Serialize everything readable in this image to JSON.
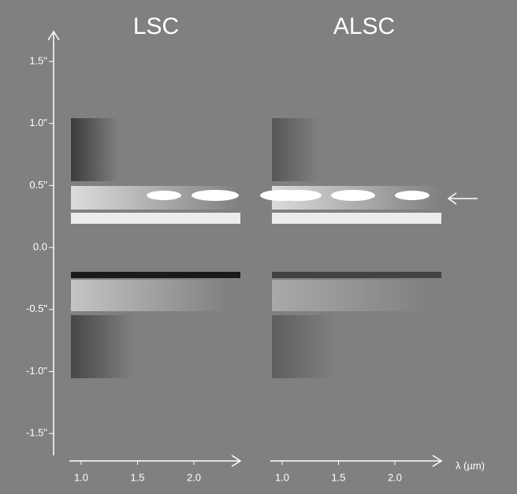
{
  "panels": [
    {
      "title": "LSC"
    },
    {
      "title": "ALSC"
    }
  ],
  "y_axis": {
    "tick_labels": [
      "1.5\"",
      "1.0\"",
      "0.5\"",
      "0.0",
      "-0.5\"",
      "-1.0\"",
      "-1.5\""
    ]
  },
  "x_axis": {
    "tick_labels": [
      "1.0",
      "1.5",
      "2.0"
    ],
    "label": "λ (µm)"
  }
}
